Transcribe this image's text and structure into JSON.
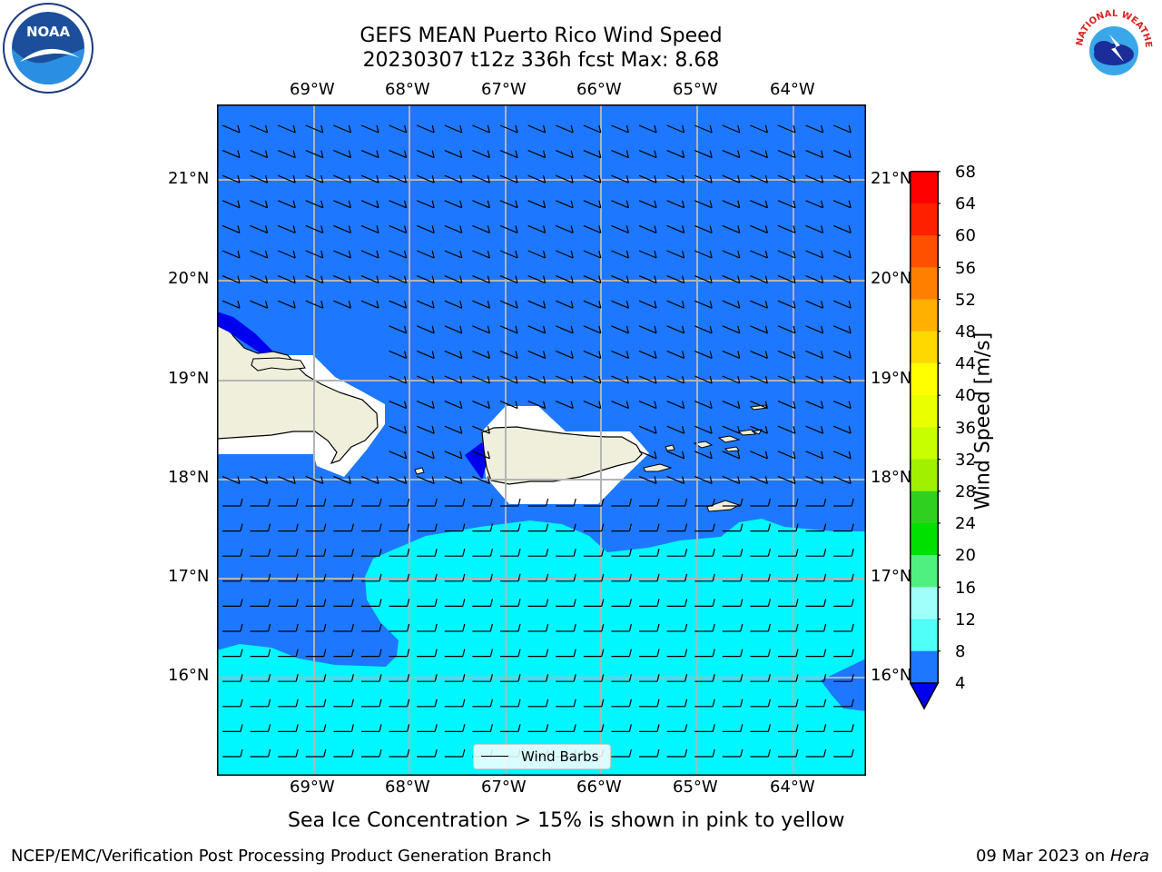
{
  "header": {
    "title_line1": "GEFS MEAN Puerto Rico Wind Speed",
    "title_line2": "20230307 t12z 336h fcst   Max: 8.68"
  },
  "logos": {
    "noaa_text": "NOAA",
    "nws_text": "NATIONAL WEATHER SERVICE"
  },
  "map": {
    "lon_labels": [
      "69°W",
      "68°W",
      "67°W",
      "66°W",
      "65°W",
      "64°W"
    ],
    "lat_labels": [
      "21°N",
      "20°N",
      "19°N",
      "18°N",
      "17°N",
      "16°N"
    ],
    "legend_label": "Wind Barbs",
    "colors": {
      "ocean_4_8": "#1e78ff",
      "ocean_8_12": "#00f7ff",
      "land": "#efefdc",
      "low_wind": "#0000ee",
      "grid": "#b4b4b4"
    }
  },
  "colorbar": {
    "label": "Wind Speed [m/s]",
    "ticks": [
      "68",
      "64",
      "60",
      "56",
      "52",
      "48",
      "44",
      "40",
      "36",
      "32",
      "28",
      "24",
      "20",
      "16",
      "12",
      "8",
      "4"
    ],
    "colors": [
      "#ff0000",
      "#ff2000",
      "#ff5000",
      "#ff8000",
      "#ffb000",
      "#ffd800",
      "#ffff00",
      "#eaff00",
      "#c8ff00",
      "#a0f000",
      "#30d020",
      "#00e000",
      "#50f080",
      "#a0fff8",
      "#50fff8",
      "#00f7ff",
      "#1e78ff"
    ],
    "under_color": "#0000ee"
  },
  "caption": "Sea Ice Concentration > 15% is shown in pink to yellow",
  "footer": {
    "left": "NCEP/EMC/Verification Post Processing Product Generation Branch",
    "right_date": "09 Mar 2023 on ",
    "right_host": "Hera"
  }
}
